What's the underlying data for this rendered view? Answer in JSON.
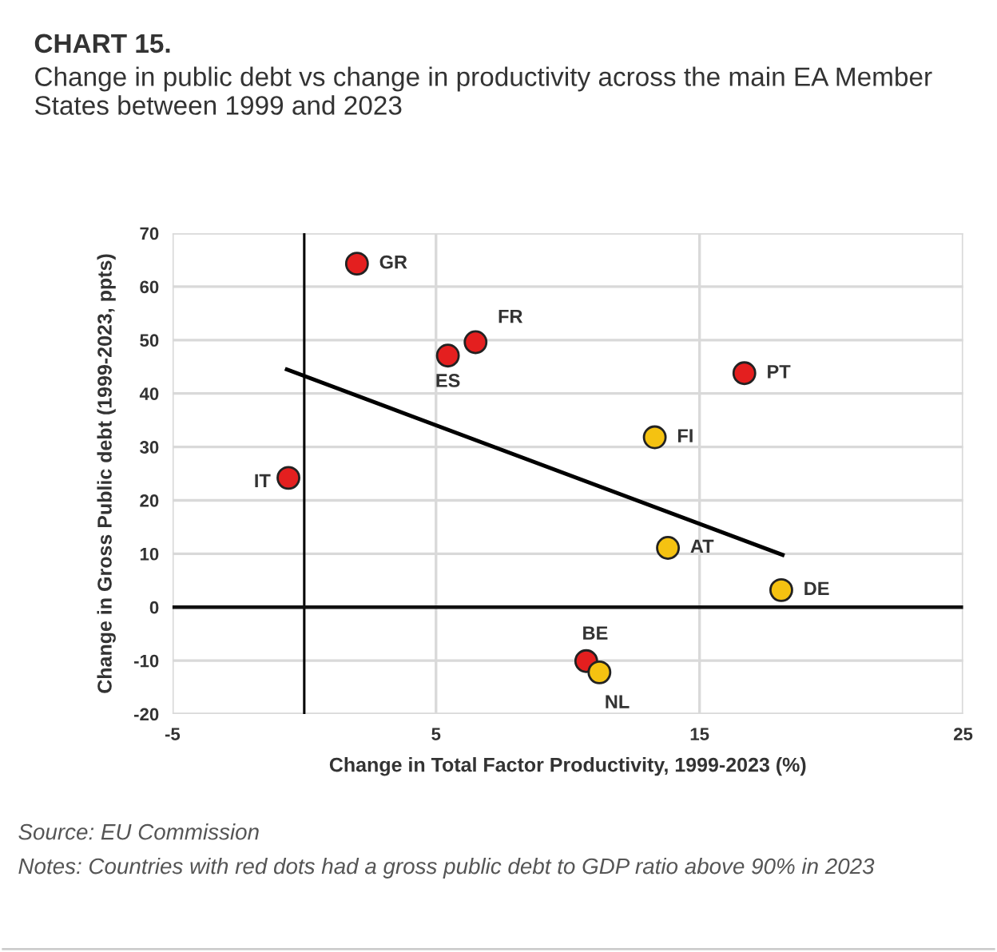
{
  "chart_data": {
    "type": "scatter",
    "title": "CHART 15.",
    "subtitle": "Change in public debt vs change in productivity across the main EA Member States between 1999 and 2023",
    "xlabel": "Change in Total Factor Productivity, 1999-2023 (%)",
    "ylabel": "Change in Gross Public debt (1999-2023, ppts)",
    "series": [
      {
        "color": "#e41f1f",
        "x": [
          2.0,
          6.5,
          5.45,
          16.7,
          -0.6,
          10.7
        ],
        "values": [
          64.3,
          49.6,
          47.1,
          43.8,
          24.2,
          -10.1
        ]
      },
      {
        "color": "#f5c211",
        "x": [
          13.3,
          13.8,
          18.1,
          11.2
        ],
        "values": [
          31.8,
          11.1,
          3.2,
          -12.2
        ]
      },
      {
        "type": "line",
        "marker": "none",
        "color": "#000000",
        "x": [
          -0.66,
          18.15
        ],
        "values": [
          44.5,
          9.8
        ]
      }
    ],
    "annotations": [
      {
        "text": "GR",
        "x": 2.0,
        "y": 64.3
      },
      {
        "text": "FR",
        "x": 6.5,
        "y": 49.6
      },
      {
        "text": "ES",
        "x": 5.45,
        "y": 47.1
      },
      {
        "text": "PT",
        "x": 16.7,
        "y": 43.8
      },
      {
        "text": "IT",
        "x": -0.6,
        "y": 24.2
      },
      {
        "text": "BE",
        "x": 10.7,
        "y": -10.1
      },
      {
        "text": "FI",
        "x": 13.3,
        "y": 31.8
      },
      {
        "text": "AT",
        "x": 13.8,
        "y": 11.1
      },
      {
        "text": "DE",
        "x": 18.1,
        "y": 3.2
      },
      {
        "text": "NL",
        "x": 11.2,
        "y": -12.2
      },
      "Source: EU Commission",
      "Notes: Countries with red dots had a gross public debt to GDP ratio above 90% in 2023"
    ],
    "xlim": [
      -5,
      25
    ],
    "ylim": [
      -20,
      70
    ],
    "xticks": [
      -5,
      5,
      15,
      25
    ],
    "yticks": [
      -20,
      -10,
      0,
      10,
      20,
      30,
      40,
      50,
      60,
      70
    ],
    "ref_lines": [
      {
        "axis": "x",
        "value": 0,
        "color": "#000000"
      },
      {
        "axis": "y",
        "value": 0,
        "color": "#111111"
      }
    ],
    "grid": true,
    "marker": "circle"
  }
}
